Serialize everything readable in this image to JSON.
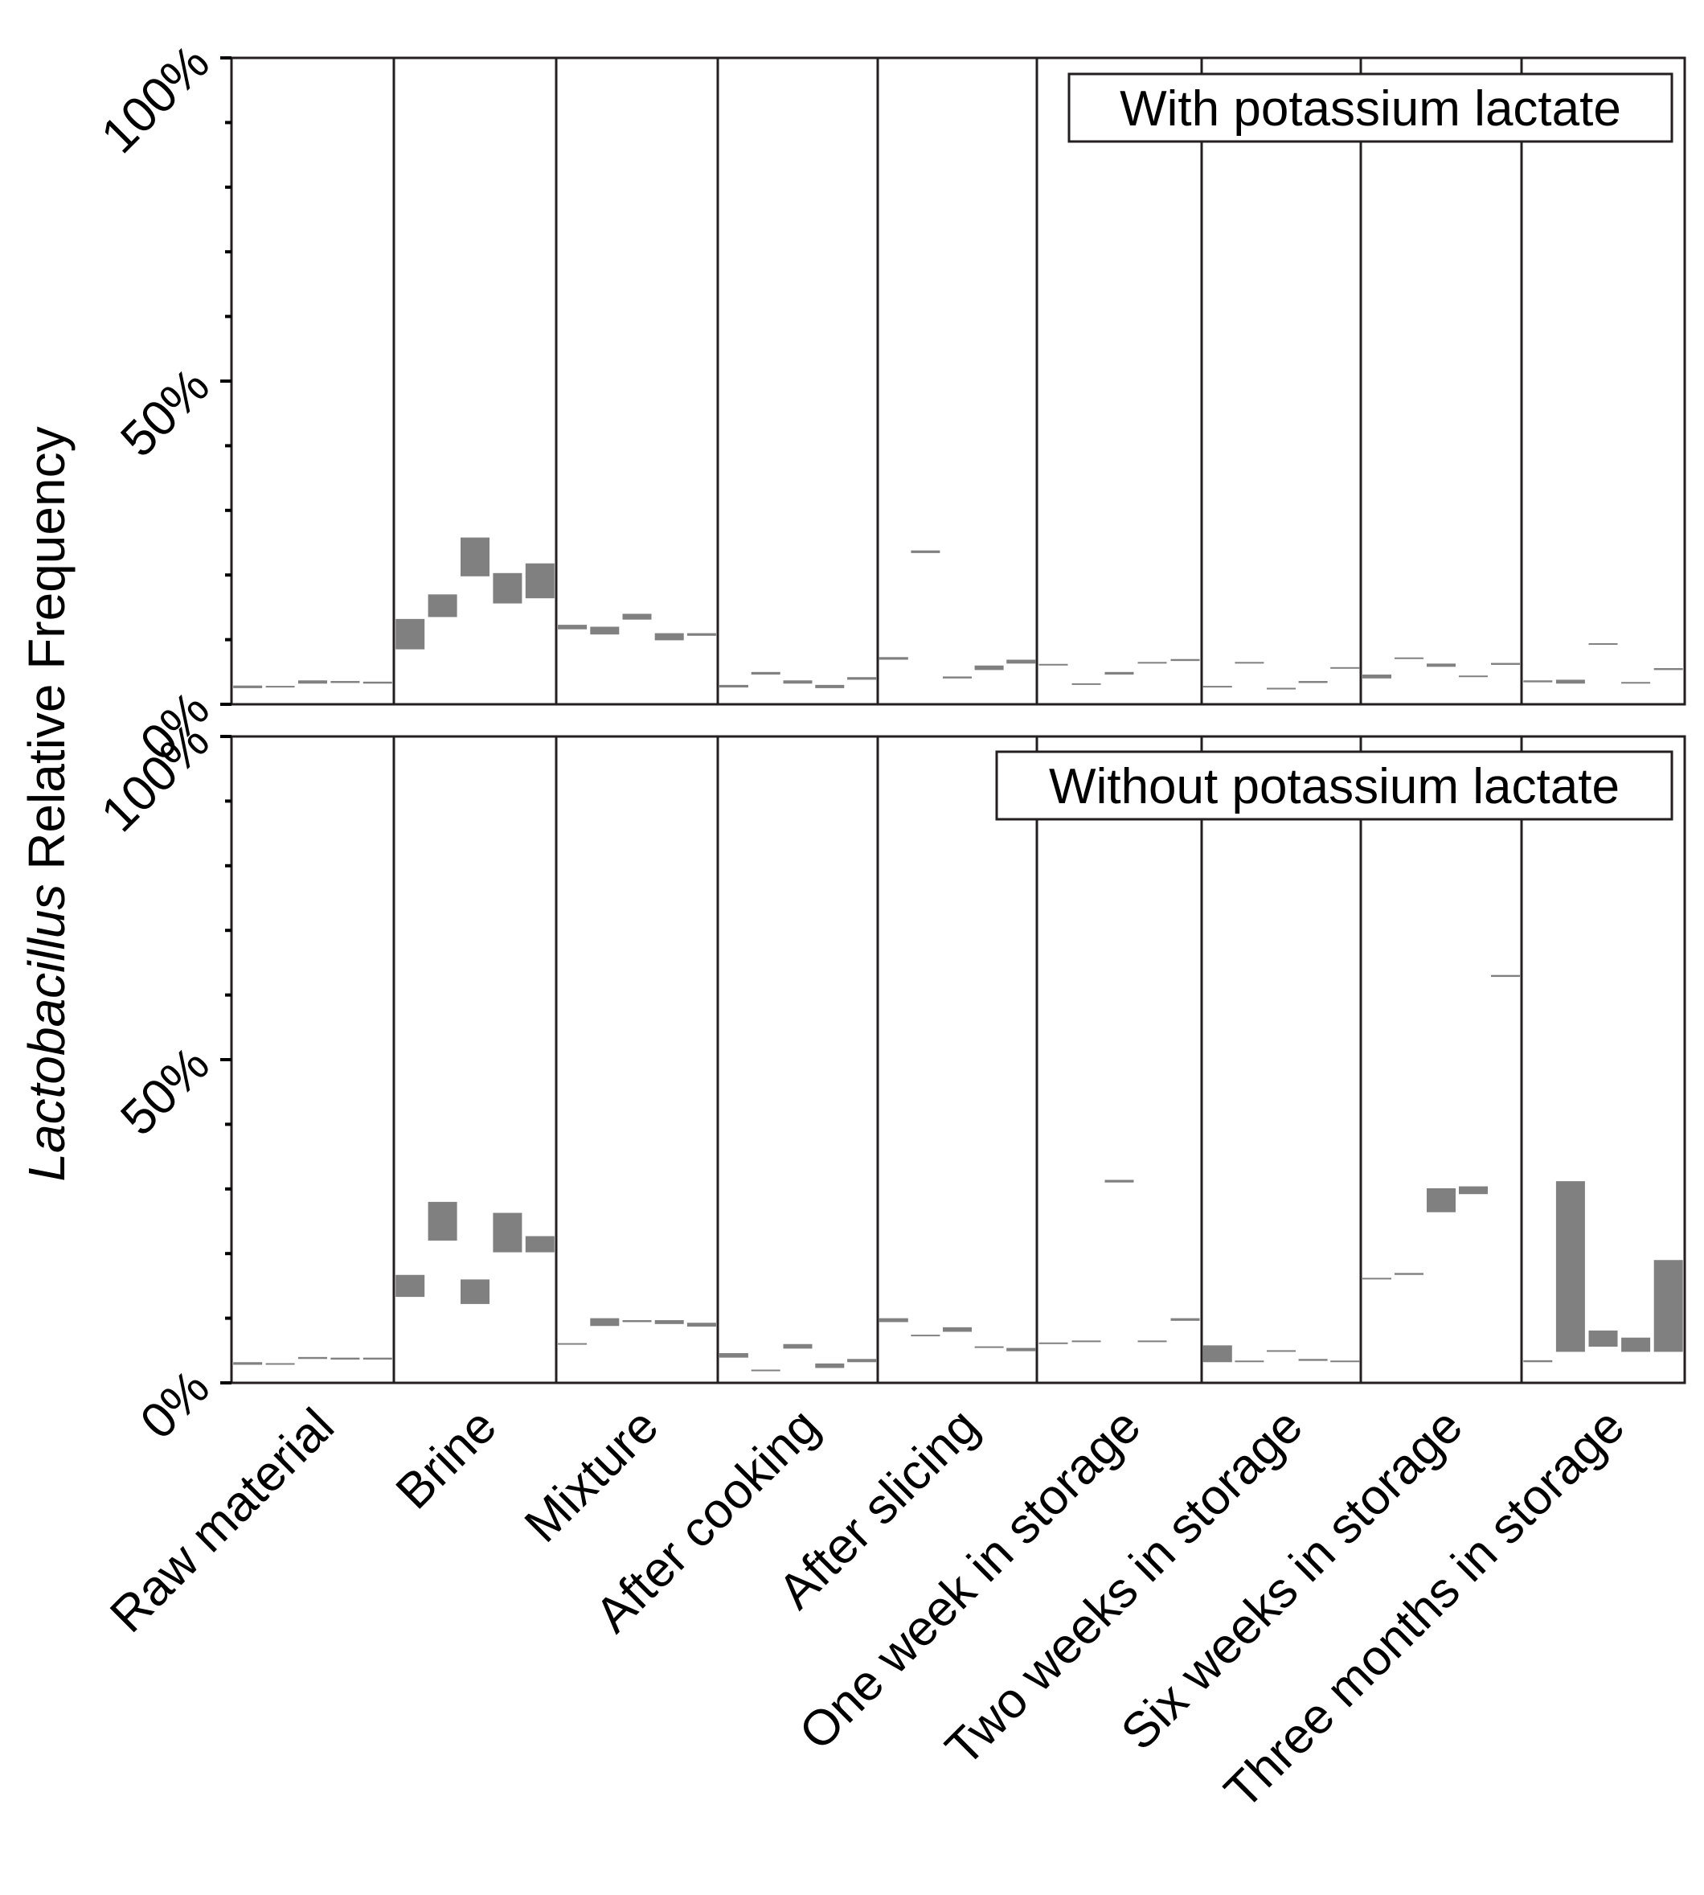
{
  "chart_data": {
    "type": "bar",
    "ylabel_italic": "Lactobacillus",
    "ylabel_rest": " Relative Frequency",
    "ylim": [
      0,
      100
    ],
    "ytick_labels": [
      "0%",
      "50%",
      "100%"
    ],
    "categories": [
      "Raw material",
      "Brine",
      "Mixture",
      "After cooking",
      "After slicing",
      "One week in storage",
      "Two weeks in storage",
      "Six weeks in storage",
      "Three months in storage"
    ],
    "colors": {
      "bar": "#808080",
      "frame": "#231f20",
      "axis": "#000000"
    },
    "panels": [
      {
        "name": "with",
        "legend": "With potassium lactate",
        "values": [
          [
            [
              2.5,
              2.9
            ],
            [
              2.6,
              2.8
            ],
            [
              3.2,
              3.7
            ],
            [
              3.3,
              3.6
            ],
            [
              3.2,
              3.5
            ]
          ],
          [
            [
              8.5,
              13.2
            ],
            [
              13.5,
              17.0
            ],
            [
              19.8,
              25.8
            ],
            [
              15.6,
              20.3
            ],
            [
              16.4,
              21.8
            ]
          ],
          [
            [
              11.6,
              12.3
            ],
            [
              10.8,
              12.0
            ],
            [
              13.1,
              14.0
            ],
            [
              9.9,
              11.0
            ],
            [
              10.6,
              11.0
            ]
          ],
          [
            [
              2.6,
              3.0
            ],
            [
              4.6,
              5.0
            ],
            [
              3.2,
              3.7
            ],
            [
              2.5,
              3.0
            ],
            [
              3.8,
              4.2
            ]
          ],
          [
            [
              6.9,
              7.3
            ],
            [
              23.4,
              23.8
            ],
            [
              4.0,
              4.3
            ],
            [
              5.3,
              6.0
            ],
            [
              6.3,
              6.9
            ]
          ],
          [
            [
              6.0,
              6.1
            ],
            [
              3.0,
              3.1
            ],
            [
              4.6,
              5.0
            ],
            [
              6.3,
              6.4
            ],
            [
              6.7,
              7.0
            ]
          ],
          [
            [
              2.6,
              2.8
            ],
            [
              6.3,
              6.5
            ],
            [
              2.3,
              2.4
            ],
            [
              3.3,
              3.6
            ],
            [
              5.5,
              5.6
            ]
          ],
          [
            [
              4.0,
              4.6
            ],
            [
              7.0,
              7.2
            ],
            [
              5.8,
              6.3
            ],
            [
              4.2,
              4.3
            ],
            [
              6.1,
              6.4
            ]
          ],
          [
            [
              3.4,
              3.7
            ],
            [
              3.2,
              3.8
            ],
            [
              9.2,
              9.4
            ],
            [
              3.2,
              3.4
            ],
            [
              5.3,
              5.6
            ]
          ]
        ]
      },
      {
        "name": "without",
        "legend": "Without potassium lactate",
        "values": [
          [
            [
              2.8,
              3.2
            ],
            [
              2.8,
              3.0
            ],
            [
              3.7,
              4.0
            ],
            [
              3.6,
              3.9
            ],
            [
              3.6,
              3.9
            ]
          ],
          [
            [
              13.3,
              16.7
            ],
            [
              22.0,
              28.0
            ],
            [
              12.2,
              16.0
            ],
            [
              20.2,
              26.3
            ],
            [
              20.2,
              22.7
            ]
          ],
          [
            [
              5.9,
              6.1
            ],
            [
              8.8,
              10.0
            ],
            [
              9.4,
              9.7
            ],
            [
              9.1,
              9.7
            ],
            [
              8.7,
              9.3
            ]
          ],
          [
            [
              3.9,
              4.6
            ],
            [
              1.8,
              2.0
            ],
            [
              5.3,
              6.0
            ],
            [
              2.3,
              3.0
            ],
            [
              3.2,
              3.7
            ]
          ],
          [
            [
              9.4,
              10.0
            ],
            [
              7.2,
              7.4
            ],
            [
              7.9,
              8.6
            ],
            [
              5.4,
              5.6
            ],
            [
              4.9,
              5.4
            ]
          ],
          [
            [
              6.0,
              6.2
            ],
            [
              6.3,
              6.5
            ],
            [
              31.0,
              31.4
            ],
            [
              6.3,
              6.5
            ],
            [
              9.6,
              10.0
            ]
          ],
          [
            [
              3.2,
              5.8
            ],
            [
              3.2,
              3.4
            ],
            [
              4.8,
              5.0
            ],
            [
              3.4,
              3.7
            ],
            [
              3.2,
              3.4
            ]
          ],
          [
            [
              16.0,
              16.2
            ],
            [
              16.7,
              17.0
            ],
            [
              26.4,
              30.1
            ],
            [
              29.2,
              30.4
            ],
            [
              62.8,
              63.1
            ]
          ],
          [
            [
              3.2,
              3.5
            ],
            [
              4.8,
              31.2
            ],
            [
              5.6,
              8.1
            ],
            [
              4.8,
              7.0
            ],
            [
              4.8,
              19.0
            ]
          ]
        ]
      }
    ]
  }
}
